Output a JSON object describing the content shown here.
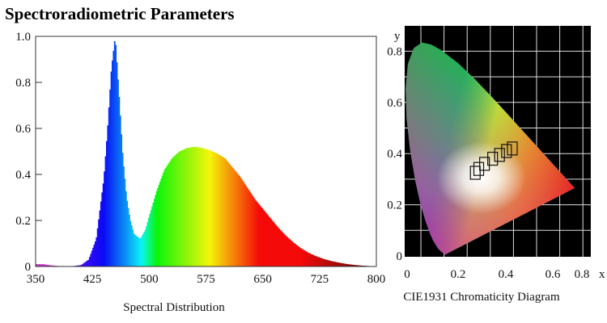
{
  "title": "Spectroradiometric Parameters",
  "chart_data": [
    {
      "type": "area",
      "title": "Spectral Distribution",
      "xlabel": "Spectral Distribution",
      "ylabel": "",
      "xlim": [
        350,
        800
      ],
      "ylim": [
        0,
        1.0
      ],
      "xticks": [
        "350",
        "425",
        "500",
        "575",
        "650",
        "725",
        "800"
      ],
      "yticks": [
        "0",
        "0.2",
        "0.4",
        "0.6",
        "0.8",
        "1.0"
      ],
      "grid": false,
      "fill": "wavelength-colored spectrum",
      "x": [
        350,
        360,
        370,
        380,
        390,
        400,
        410,
        420,
        430,
        440,
        445,
        450,
        455,
        460,
        465,
        470,
        475,
        480,
        488,
        495,
        500,
        510,
        520,
        530,
        540,
        550,
        560,
        570,
        580,
        590,
        600,
        610,
        620,
        630,
        640,
        650,
        660,
        670,
        680,
        690,
        700,
        710,
        720,
        730,
        740,
        750,
        760,
        770,
        780,
        790,
        800
      ],
      "y": [
        0.01,
        0.01,
        0.005,
        0.002,
        0.001,
        0.002,
        0.006,
        0.03,
        0.12,
        0.38,
        0.6,
        0.86,
        1.0,
        0.75,
        0.48,
        0.3,
        0.2,
        0.14,
        0.12,
        0.16,
        0.22,
        0.33,
        0.42,
        0.47,
        0.5,
        0.515,
        0.52,
        0.515,
        0.505,
        0.49,
        0.47,
        0.43,
        0.39,
        0.34,
        0.29,
        0.25,
        0.21,
        0.17,
        0.135,
        0.105,
        0.08,
        0.06,
        0.045,
        0.033,
        0.024,
        0.017,
        0.011,
        0.007,
        0.004,
        0.002,
        0.001
      ]
    },
    {
      "type": "scatter",
      "title": "CIE1931 Chromaticity Diagram",
      "xlabel": "x",
      "ylabel": "y",
      "xlim": [
        0,
        0.8
      ],
      "ylim": [
        0,
        0.85
      ],
      "xticks": [
        "0",
        "0.2",
        "0.4",
        "0.6",
        "0.8"
      ],
      "yticks": [
        "0",
        "0.2",
        "0.4",
        "0.6",
        "0.8"
      ],
      "grid": true,
      "background": "#000000",
      "spectral_locus": [
        [
          0.1741,
          0.005
        ],
        [
          0.1566,
          0.0177
        ],
        [
          0.144,
          0.0297
        ],
        [
          0.1241,
          0.0578
        ],
        [
          0.1096,
          0.0868
        ],
        [
          0.0913,
          0.1327
        ],
        [
          0.0687,
          0.2007
        ],
        [
          0.0454,
          0.295
        ],
        [
          0.0235,
          0.4127
        ],
        [
          0.0082,
          0.5384
        ],
        [
          0.0039,
          0.6548
        ],
        [
          0.0139,
          0.7502
        ],
        [
          0.0389,
          0.812
        ],
        [
          0.0743,
          0.8338
        ],
        [
          0.1142,
          0.8262
        ],
        [
          0.1547,
          0.8059
        ],
        [
          0.2296,
          0.7543
        ],
        [
          0.3016,
          0.6923
        ],
        [
          0.3731,
          0.6245
        ],
        [
          0.4441,
          0.5547
        ],
        [
          0.5125,
          0.4866
        ],
        [
          0.5752,
          0.4242
        ],
        [
          0.627,
          0.3725
        ],
        [
          0.6915,
          0.3083
        ],
        [
          0.7347,
          0.2653
        ]
      ],
      "cct_boxes": [
        [
          0.305,
          0.325
        ],
        [
          0.32,
          0.34
        ],
        [
          0.345,
          0.36
        ],
        [
          0.38,
          0.38
        ],
        [
          0.41,
          0.395
        ],
        [
          0.44,
          0.41
        ],
        [
          0.465,
          0.42
        ]
      ]
    }
  ]
}
